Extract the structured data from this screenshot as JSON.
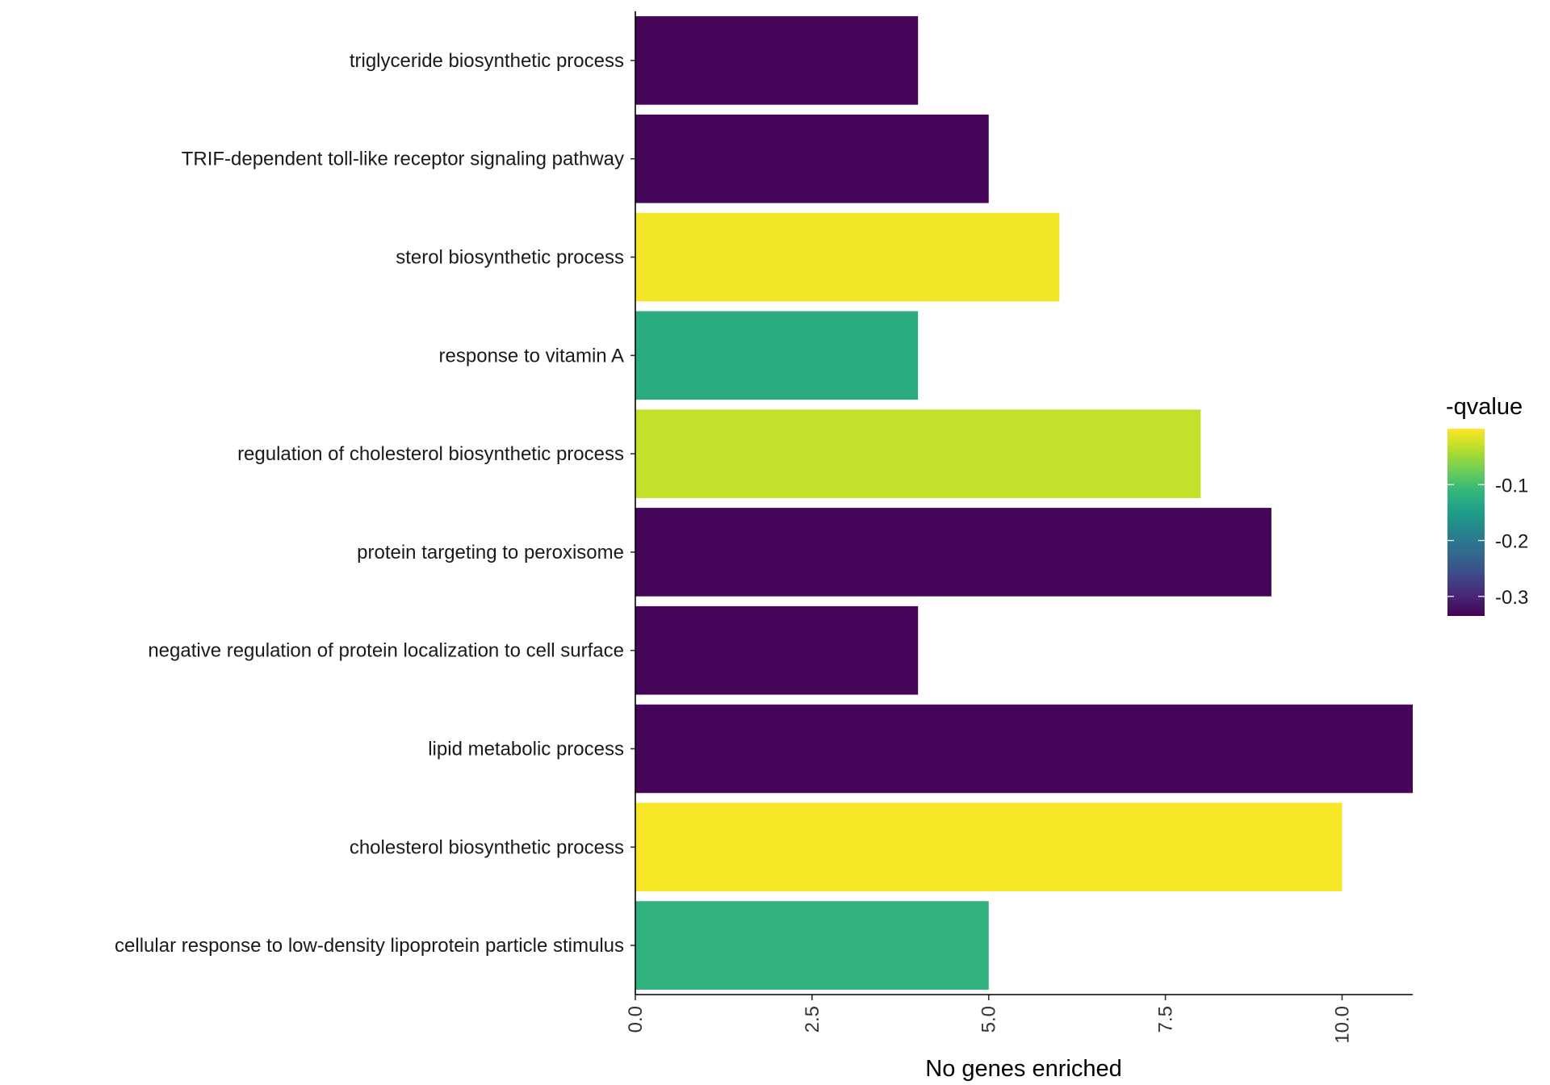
{
  "chart_data": {
    "type": "bar",
    "orientation": "horizontal",
    "categories": [
      "triglyceride biosynthetic process",
      "TRIF-dependent toll-like receptor signaling pathway",
      "sterol biosynthetic process",
      "response to vitamin A",
      "regulation of cholesterol biosynthetic process",
      "protein targeting to peroxisome",
      "negative regulation of protein localization to cell surface",
      "lipid metabolic process",
      "cholesterol biosynthetic process",
      "cellular response to low-density lipoprotein particle stimulus"
    ],
    "values": [
      4,
      5,
      6,
      4,
      8,
      9,
      4,
      11,
      10,
      5
    ],
    "fill_values": [
      -0.33,
      -0.33,
      -0.005,
      -0.13,
      -0.03,
      -0.33,
      -0.33,
      -0.33,
      -0.003,
      -0.12
    ],
    "xlabel": "No genes enriched",
    "ylabel": "",
    "xlim": [
      0,
      11
    ],
    "xticks": [
      0,
      2.5,
      5,
      7.5,
      10
    ],
    "xtick_labels": [
      "0.0",
      "2.5",
      "5.0",
      "7.5",
      "10.0"
    ],
    "legend": {
      "title": "-qvalue",
      "position": "right",
      "range": [
        -0.335,
        0
      ],
      "ticks": [
        -0.1,
        -0.2,
        -0.3
      ],
      "tick_labels": [
        "-0.1",
        "-0.2",
        "-0.3"
      ],
      "colormap": "viridis"
    },
    "grid": false
  }
}
